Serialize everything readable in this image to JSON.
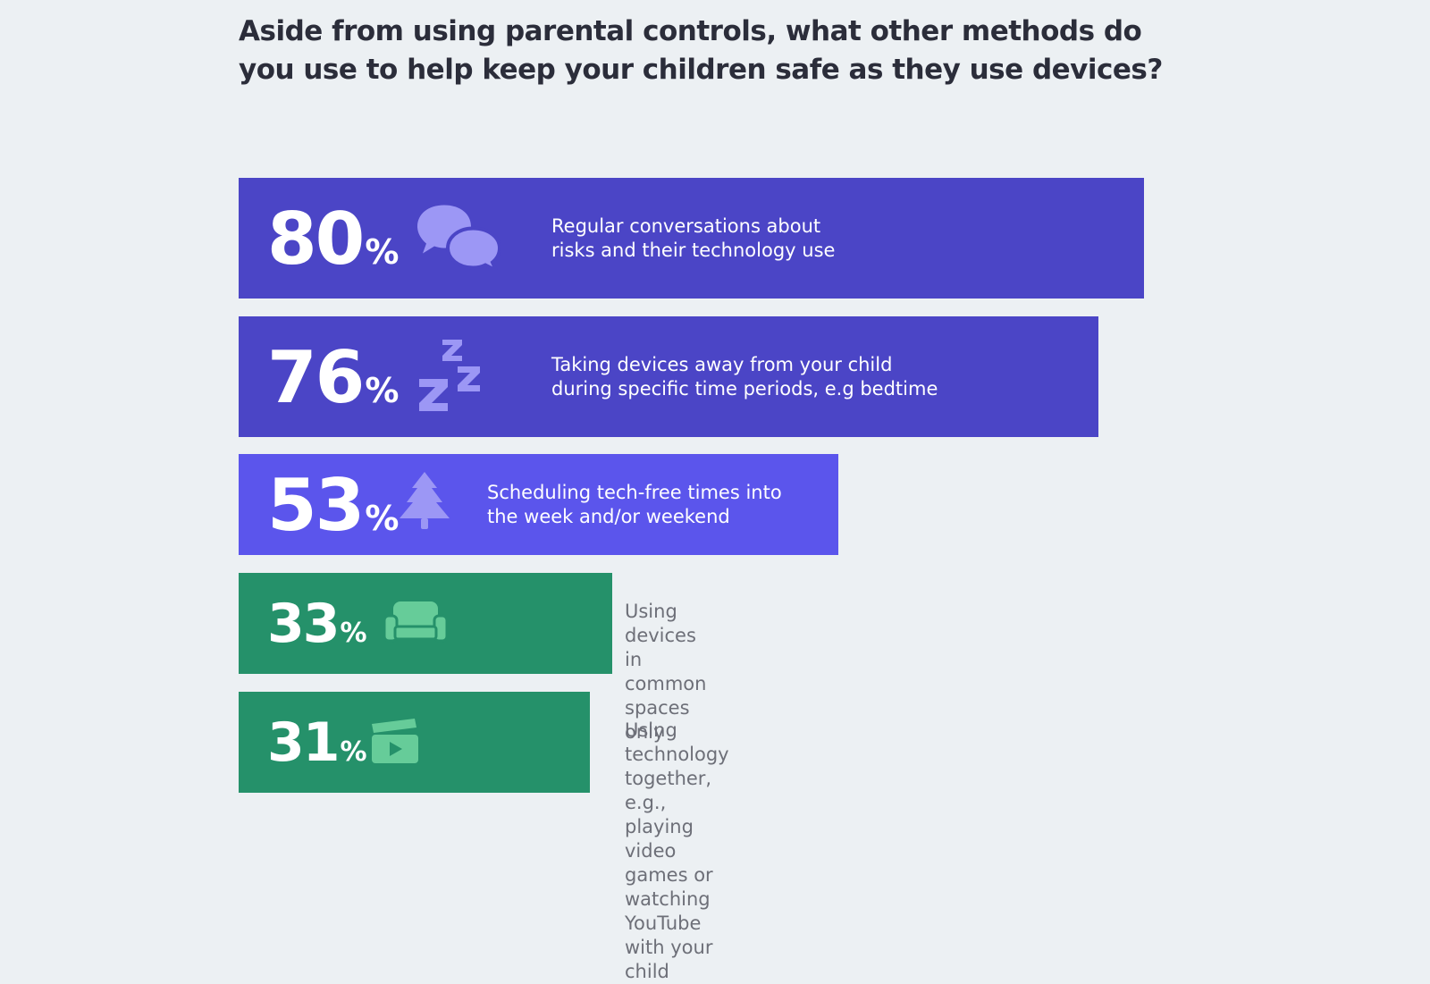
{
  "title": "Aside from using parental controls, what other methods do you use to help keep your children safe as they use devices?",
  "colors": {
    "dark_purple": "#4b45c6",
    "light_purple": "#5b55ec",
    "green": "#25916a",
    "icon_purple": "#9c97f5",
    "icon_green": "#66cc99"
  },
  "chart_data": {
    "type": "bar",
    "orientation": "horizontal",
    "title": "Aside from using parental controls, what other methods do you use to help keep your children safe as they use devices?",
    "unit": "%",
    "categories": [
      "Regular conversations about\nrisks and their technology use",
      "Taking devices away from your child\nduring specific time periods, e.g bedtime",
      "Scheduling tech-free times into\nthe week and/or weekend",
      "Using devices in\ncommon spaces only",
      "Using technology together, e.g., playing video\ngames or watching YouTube with your child"
    ],
    "values": [
      80,
      76,
      53,
      33,
      31
    ],
    "value_labels": [
      "80",
      "76",
      "53",
      "33",
      "31"
    ],
    "percent_sign": "%",
    "icons": [
      "speech-bubbles-icon",
      "sleep-zzz-icon",
      "pine-tree-icon",
      "sofa-icon",
      "clapperboard-icon"
    ],
    "bar_colors": [
      "#4b45c6",
      "#4b45c6",
      "#5b55ec",
      "#25916a",
      "#25916a"
    ],
    "xlim": [
      0,
      80
    ]
  }
}
